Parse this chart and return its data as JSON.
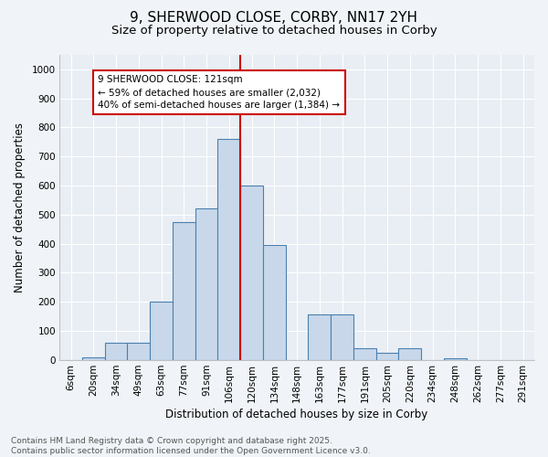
{
  "title": "9, SHERWOOD CLOSE, CORBY, NN17 2YH",
  "subtitle": "Size of property relative to detached houses in Corby",
  "xlabel": "Distribution of detached houses by size in Corby",
  "ylabel": "Number of detached properties",
  "bar_labels": [
    "6sqm",
    "20sqm",
    "34sqm",
    "49sqm",
    "63sqm",
    "77sqm",
    "91sqm",
    "106sqm",
    "120sqm",
    "134sqm",
    "148sqm",
    "163sqm",
    "177sqm",
    "191sqm",
    "205sqm",
    "220sqm",
    "234sqm",
    "248sqm",
    "262sqm",
    "277sqm",
    "291sqm"
  ],
  "bar_values": [
    0,
    10,
    60,
    60,
    200,
    475,
    520,
    760,
    600,
    395,
    0,
    155,
    155,
    40,
    25,
    40,
    0,
    5,
    0,
    0,
    0
  ],
  "bar_color": "#c8d8ea",
  "bar_edge_color": "#4a80b0",
  "vline_x": 8.5,
  "vline_color": "#cc0000",
  "annotation_text": "9 SHERWOOD CLOSE: 121sqm\n← 59% of detached houses are smaller (2,032)\n40% of semi-detached houses are larger (1,384) →",
  "annotation_box_color": "#ffffff",
  "annotation_box_edge": "#cc0000",
  "ylim": [
    0,
    1050
  ],
  "yticks": [
    0,
    100,
    200,
    300,
    400,
    500,
    600,
    700,
    800,
    900,
    1000
  ],
  "bg_color": "#e8eef4",
  "plot_bg_color": "#dce6f0",
  "footer_text": "Contains HM Land Registry data © Crown copyright and database right 2025.\nContains public sector information licensed under the Open Government Licence v3.0.",
  "title_fontsize": 11,
  "subtitle_fontsize": 9.5,
  "axis_fontsize": 8.5,
  "tick_fontsize": 7.5,
  "annot_fontsize": 7.5,
  "footer_fontsize": 6.5
}
